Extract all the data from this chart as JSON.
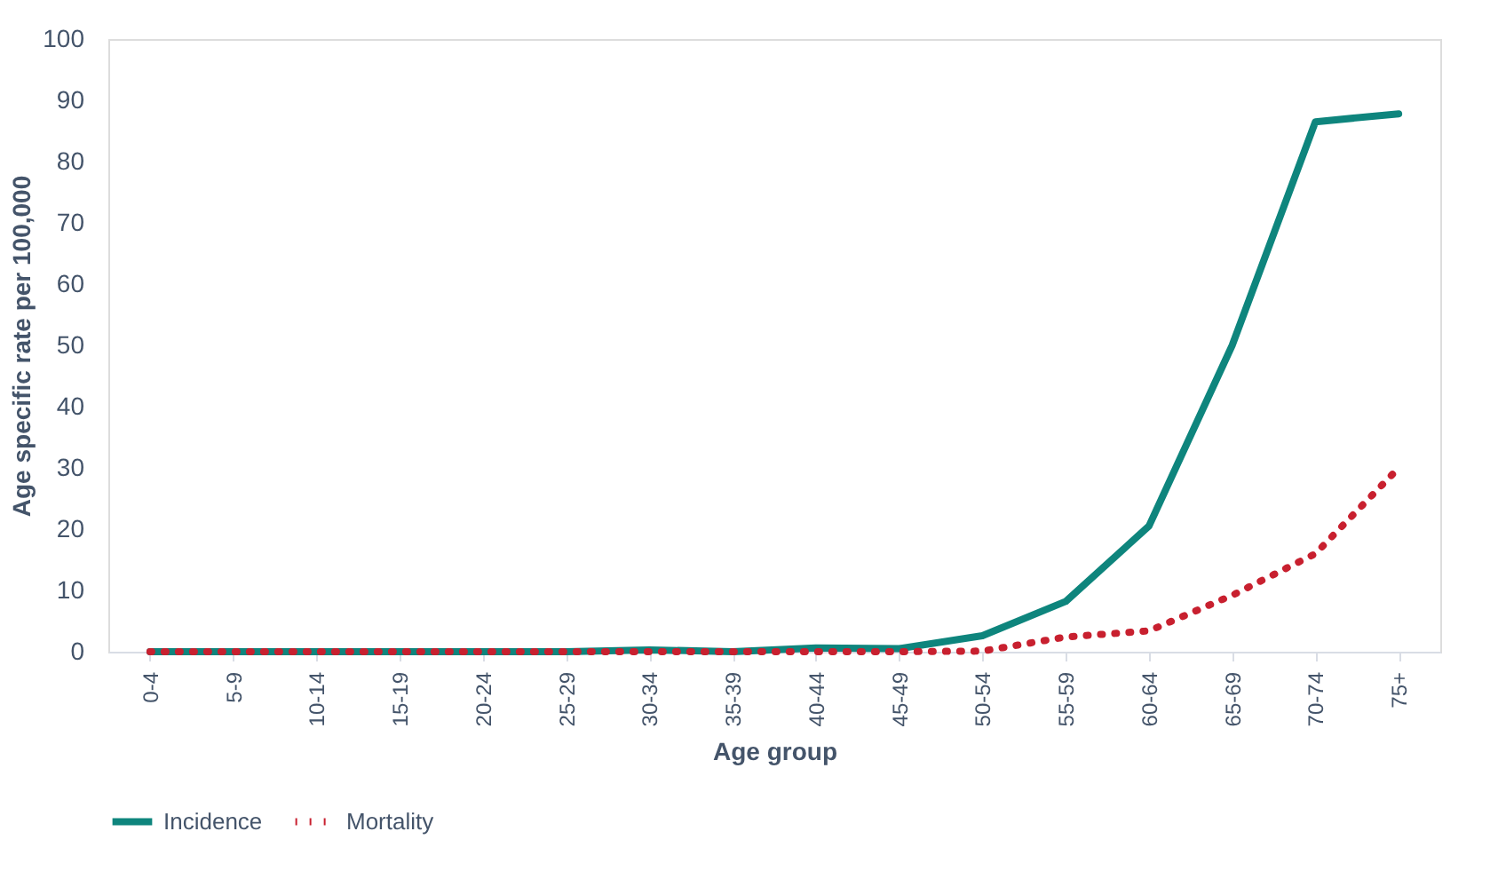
{
  "chart_data": {
    "type": "line",
    "xlabel": "Age group",
    "ylabel": "Age specific rate per 100,000",
    "categories": [
      "0-4",
      "5-9",
      "10-14",
      "15-19",
      "20-24",
      "25-29",
      "30-34",
      "35-39",
      "40-44",
      "45-49",
      "50-54",
      "55-59",
      "60-64",
      "65-69",
      "70-74",
      "75+"
    ],
    "series": [
      {
        "name": "Incidence",
        "color": "#0e857d",
        "line_style": "solid",
        "values": [
          0,
          0,
          0,
          0,
          0,
          0,
          0.3,
          0,
          0.6,
          0.5,
          2.6,
          8.2,
          20.5,
          50,
          86.5,
          87.8
        ]
      },
      {
        "name": "Mortality",
        "color": "#c8202f",
        "line_style": "dotted",
        "values": [
          0,
          0,
          0,
          0,
          0,
          0,
          0,
          0,
          0,
          0,
          0.1,
          2.4,
          3.4,
          9.2,
          16,
          30
        ]
      }
    ],
    "ylim": [
      0,
      100
    ],
    "yticks": [
      0,
      10,
      20,
      30,
      40,
      50,
      60,
      70,
      80,
      90,
      100
    ],
    "grid": false,
    "legend": "bottom"
  }
}
